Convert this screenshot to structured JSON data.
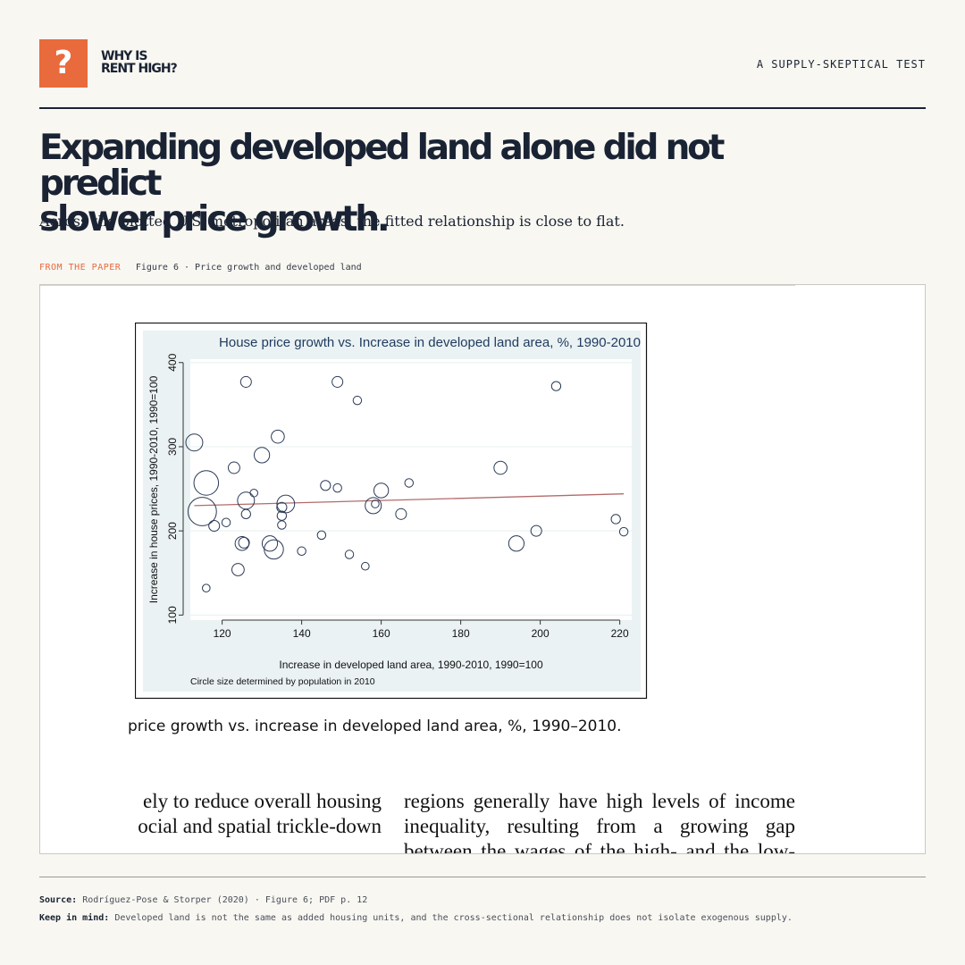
{
  "header": {
    "logo_glyph": "?",
    "brand_line1": "WHY IS",
    "brand_line2": "RENT HIGH?",
    "tagline": "A SUPPLY-SKEPTICAL TEST",
    "accent_color": "#e96a3c"
  },
  "headline": {
    "line1": "Expanding developed land alone did not predict",
    "line2": "slower price growth.",
    "subhead": "Across the plotted U.S. metropolitan areas, the fitted relationship is close to flat."
  },
  "figure": {
    "tag": "FROM THE PAPER",
    "desc": "Figure 6 · Price growth and developed land",
    "caption": "price growth vs. increase in developed land area, %, 1990–2010.",
    "left_col": [
      "ely to reduce overall housing",
      "ocial and spatial trickle-down"
    ],
    "right_col": [
      "regions generally have high levels of income",
      "inequality, resulting from a growing gap",
      "between the wages of the high- and the low-"
    ]
  },
  "chart_data": {
    "type": "scatter",
    "title": "House price growth vs. Increase in developed land area, %, 1990-2010",
    "xlabel": "Increase in developed land area, 1990-2010, 1990=100",
    "ylabel": "Increase in house prices, 1990-2010, 1990=100",
    "note": "Circle size determined by population in 2010",
    "xlim": [
      112,
      223
    ],
    "ylim": [
      94,
      404
    ],
    "xticks": [
      120,
      140,
      160,
      180,
      200,
      220
    ],
    "yticks": [
      100,
      200,
      300,
      400
    ],
    "grid": true,
    "fit_line": {
      "x1": 113,
      "y1": 230,
      "x2": 221,
      "y2": 244,
      "color": "#b36b6b"
    },
    "colors": {
      "panel": "#eaf2f3",
      "plot": "#ffffff",
      "marker": "#2b3a55",
      "title": "#1f3a5f"
    },
    "points": [
      {
        "x": 113,
        "y": 305,
        "s": 2.2
      },
      {
        "x": 116,
        "y": 132,
        "s": 1
      },
      {
        "x": 115,
        "y": 223,
        "s": 3.7
      },
      {
        "x": 116,
        "y": 257,
        "s": 3.2
      },
      {
        "x": 118,
        "y": 206,
        "s": 1.4
      },
      {
        "x": 121,
        "y": 210,
        "s": 1.1
      },
      {
        "x": 123,
        "y": 275,
        "s": 1.5
      },
      {
        "x": 124,
        "y": 154,
        "s": 1.6
      },
      {
        "x": 125,
        "y": 185,
        "s": 1.8
      },
      {
        "x": 125.5,
        "y": 186,
        "s": 1.4
      },
      {
        "x": 126,
        "y": 236,
        "s": 2.2
      },
      {
        "x": 126,
        "y": 220,
        "s": 1.2
      },
      {
        "x": 126,
        "y": 377,
        "s": 1.4
      },
      {
        "x": 128,
        "y": 245,
        "s": 1
      },
      {
        "x": 130,
        "y": 290,
        "s": 2.0
      },
      {
        "x": 132,
        "y": 185,
        "s": 2.0
      },
      {
        "x": 133,
        "y": 178,
        "s": 2.5
      },
      {
        "x": 134,
        "y": 312,
        "s": 1.7
      },
      {
        "x": 135,
        "y": 218,
        "s": 1.2
      },
      {
        "x": 135,
        "y": 207,
        "s": 1.1
      },
      {
        "x": 135,
        "y": 228,
        "s": 1.3
      },
      {
        "x": 136,
        "y": 232,
        "s": 2.3
      },
      {
        "x": 140,
        "y": 176,
        "s": 1.1
      },
      {
        "x": 145,
        "y": 195,
        "s": 1.1
      },
      {
        "x": 146,
        "y": 254,
        "s": 1.3
      },
      {
        "x": 149,
        "y": 377,
        "s": 1.4
      },
      {
        "x": 149,
        "y": 251,
        "s": 1.1
      },
      {
        "x": 152,
        "y": 172,
        "s": 1.1
      },
      {
        "x": 154,
        "y": 355,
        "s": 1.1
      },
      {
        "x": 156,
        "y": 158,
        "s": 1
      },
      {
        "x": 158,
        "y": 230,
        "s": 2.1
      },
      {
        "x": 158.5,
        "y": 232,
        "s": 1
      },
      {
        "x": 160,
        "y": 248,
        "s": 1.9
      },
      {
        "x": 165,
        "y": 220,
        "s": 1.4
      },
      {
        "x": 167,
        "y": 257,
        "s": 1.1
      },
      {
        "x": 190,
        "y": 275,
        "s": 1.7
      },
      {
        "x": 194,
        "y": 185,
        "s": 2.0
      },
      {
        "x": 199,
        "y": 200,
        "s": 1.4
      },
      {
        "x": 204,
        "y": 372,
        "s": 1.2
      },
      {
        "x": 219,
        "y": 214,
        "s": 1.2
      },
      {
        "x": 221,
        "y": 199,
        "s": 1.1
      }
    ]
  },
  "footer": {
    "source_label": "Source:",
    "source_text": "Rodríguez-Pose & Storper (2020) · Figure 6; PDF p. 12",
    "note_label": "Keep in mind:",
    "note_text": "Developed land is not the same as added housing units, and the cross-sectional relationship does not isolate exogenous supply."
  }
}
